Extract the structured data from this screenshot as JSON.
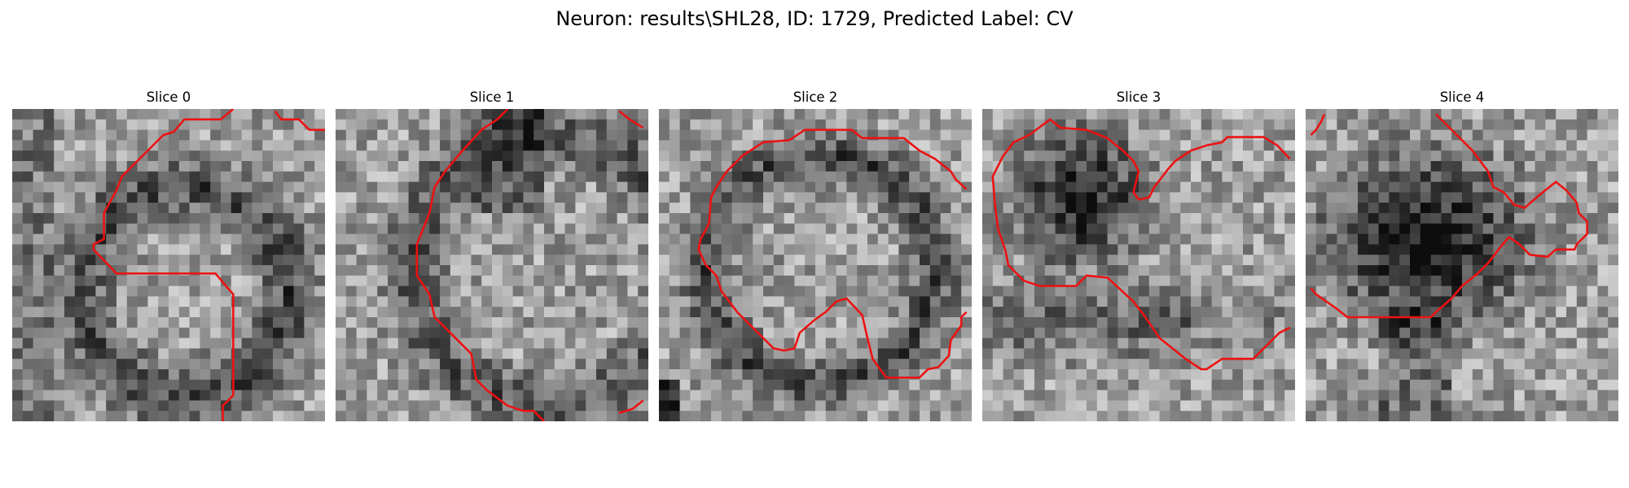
{
  "figure": {
    "title": "Neuron: results\\SHL28, ID: 1729, Predicted Label: CV",
    "panels": [
      {
        "title": "Slice 0",
        "seed": 11,
        "dark": "left-ring",
        "contours": [
          [
            [
              212,
              0
            ],
            [
              200,
              10
            ],
            [
              165,
              10
            ],
            [
              155,
              22
            ],
            [
              145,
              25
            ],
            [
              120,
              50
            ],
            [
              105,
              65
            ],
            [
              100,
              78
            ],
            [
              88,
              100
            ],
            [
              88,
              125
            ],
            [
              78,
              130
            ],
            [
              78,
              135
            ],
            [
              100,
              158
            ],
            [
              195,
              158
            ],
            [
              205,
              170
            ],
            [
              212,
              178
            ],
            [
              212,
              275
            ],
            [
              202,
              285
            ],
            [
              202,
              300
            ]
          ],
          [
            [
              252,
              2
            ],
            [
              258,
              10
            ],
            [
              275,
              10
            ],
            [
              285,
              20
            ],
            [
              300,
              20
            ]
          ]
        ]
      },
      {
        "title": "Slice 1",
        "seed": 23,
        "dark": "left-arc",
        "contours": [
          [
            [
              165,
              0
            ],
            [
              155,
              10
            ],
            [
              140,
              20
            ],
            [
              120,
              42
            ],
            [
              105,
              60
            ],
            [
              95,
              75
            ],
            [
              90,
              100
            ],
            [
              78,
              130
            ],
            [
              78,
              160
            ],
            [
              90,
              178
            ],
            [
              95,
              200
            ],
            [
              105,
              210
            ],
            [
              130,
              235
            ],
            [
              135,
              260
            ],
            [
              145,
              270
            ],
            [
              165,
              285
            ],
            [
              180,
              290
            ],
            [
              190,
              290
            ],
            [
              200,
              300
            ]
          ],
          [
            [
              272,
              2
            ],
            [
              282,
              10
            ],
            [
              295,
              18
            ]
          ],
          [
            [
              272,
              292
            ],
            [
              285,
              288
            ],
            [
              295,
              280
            ]
          ]
        ]
      },
      {
        "title": "Slice 2",
        "seed": 37,
        "dark": "ring",
        "contours": [
          [
            [
              295,
              77
            ],
            [
              285,
              68
            ],
            [
              280,
              60
            ],
            [
              265,
              48
            ],
            [
              250,
              40
            ],
            [
              235,
              28
            ],
            [
              195,
              28
            ],
            [
              185,
              20
            ],
            [
              140,
              20
            ],
            [
              125,
              30
            ],
            [
              100,
              32
            ],
            [
              80,
              45
            ],
            [
              65,
              60
            ],
            [
              55,
              75
            ],
            [
              50,
              85
            ],
            [
              48,
              110
            ],
            [
              40,
              125
            ],
            [
              38,
              135
            ],
            [
              45,
              150
            ],
            [
              55,
              160
            ],
            [
              60,
              175
            ],
            [
              75,
              195
            ],
            [
              90,
              210
            ],
            [
              110,
              230
            ],
            [
              120,
              232
            ],
            [
              130,
              230
            ],
            [
              135,
              215
            ],
            [
              150,
              202
            ],
            [
              160,
              195
            ],
            [
              170,
              185
            ],
            [
              180,
              182
            ],
            [
              195,
              198
            ],
            [
              200,
              220
            ],
            [
              205,
              240
            ],
            [
              218,
              258
            ],
            [
              250,
              258
            ],
            [
              258,
              250
            ],
            [
              268,
              248
            ],
            [
              278,
              237
            ],
            [
              280,
              222
            ],
            [
              290,
              208
            ],
            [
              290,
              200
            ],
            [
              295,
              195
            ]
          ]
        ]
      },
      {
        "title": "Slice 3",
        "seed": 51,
        "dark": "top-blob",
        "contours": [
          [
            [
              295,
              48
            ],
            [
              283,
              35
            ],
            [
              270,
              27
            ],
            [
              235,
              27
            ],
            [
              230,
              32
            ],
            [
              215,
              35
            ],
            [
              200,
              40
            ],
            [
              185,
              50
            ],
            [
              178,
              58
            ],
            [
              165,
              75
            ],
            [
              160,
              85
            ],
            [
              150,
              87
            ],
            [
              145,
              80
            ],
            [
              150,
              60
            ],
            [
              145,
              50
            ],
            [
              135,
              40
            ],
            [
              120,
              28
            ],
            [
              100,
              20
            ],
            [
              75,
              18
            ],
            [
              65,
              10
            ],
            [
              45,
              25
            ],
            [
              30,
              32
            ],
            [
              20,
              45
            ],
            [
              10,
              65
            ],
            [
              12,
              90
            ],
            [
              15,
              115
            ],
            [
              22,
              135
            ],
            [
              25,
              150
            ],
            [
              40,
              165
            ],
            [
              55,
              170
            ],
            [
              90,
              170
            ],
            [
              100,
              160
            ],
            [
              120,
              162
            ],
            [
              145,
              185
            ],
            [
              155,
              198
            ],
            [
              170,
              220
            ],
            [
              195,
              240
            ],
            [
              210,
              250
            ],
            [
              215,
              250
            ],
            [
              230,
              240
            ],
            [
              260,
              240
            ],
            [
              275,
              225
            ],
            [
              285,
              215
            ],
            [
              295,
              210
            ]
          ]
        ]
      },
      {
        "title": "Slice 4",
        "seed": 67,
        "dark": "center-blob",
        "contours": [
          [
            [
              5,
              25
            ],
            [
              10,
              20
            ],
            [
              15,
              12
            ],
            [
              18,
              5
            ]
          ],
          [
            [
              125,
              5
            ],
            [
              140,
              20
            ],
            [
              160,
              40
            ],
            [
              175,
              60
            ],
            [
              180,
              75
            ],
            [
              190,
              80
            ],
            [
              200,
              92
            ],
            [
              210,
              95
            ],
            [
              225,
              82
            ],
            [
              240,
              70
            ],
            [
              250,
              78
            ],
            [
              260,
              90
            ],
            [
              262,
              100
            ],
            [
              270,
              108
            ],
            [
              270,
              120
            ],
            [
              260,
              130
            ],
            [
              258,
              135
            ],
            [
              240,
              135
            ],
            [
              232,
              142
            ],
            [
              215,
              140
            ],
            [
              205,
              130
            ],
            [
              195,
              123
            ],
            [
              185,
              135
            ],
            [
              175,
              148
            ],
            [
              165,
              158
            ],
            [
              150,
              170
            ],
            [
              140,
              182
            ],
            [
              125,
              195
            ],
            [
              120,
              200
            ],
            [
              90,
              200
            ],
            [
              40,
              200
            ],
            [
              30,
              192
            ],
            [
              20,
              185
            ],
            [
              10,
              178
            ],
            [
              5,
              172
            ]
          ]
        ]
      }
    ]
  }
}
